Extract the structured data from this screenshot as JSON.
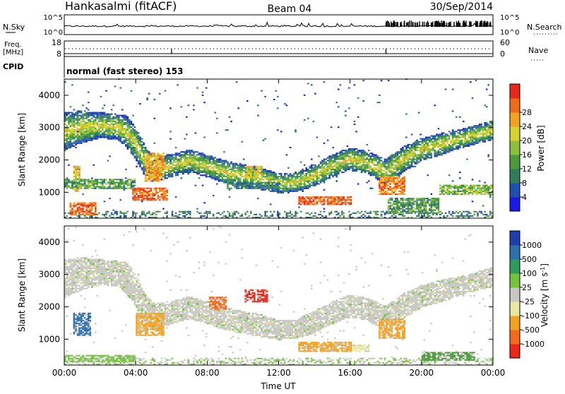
{
  "header": {
    "station": "Hankasalmi (fitACF)",
    "beam": "Beam 04",
    "date": "30/Sep/2014"
  },
  "side_labels": {
    "nsky": "N.Sky",
    "nsky_top": "10^5",
    "nsky_bottom": "10^0",
    "nsearch": "N.Search",
    "nsearch_top": "10^5",
    "nsearch_bottom": "10^0",
    "freq": "Freq.",
    "freq_unit": "[MHz]",
    "freq_top": "18",
    "freq_bottom": "8",
    "nave": "Nave",
    "nave_top": "60",
    "nave_bottom": "0",
    "cpid": "CPID",
    "cpid_text": "normal (fast stereo) 153"
  },
  "chart_data": [
    {
      "type": "heatmap",
      "name": "Power",
      "ylabel": "Slant Range [km]",
      "xlabel": "Time UT",
      "x_ticks": [
        "00:00",
        "04:00",
        "08:00",
        "12:00",
        "16:00",
        "20:00",
        "00:00"
      ],
      "y_ticks": [
        1000,
        2000,
        3000,
        4000
      ],
      "ylim": [
        200,
        4500
      ],
      "xlim_hours": [
        0,
        24
      ],
      "colorbar": {
        "label": "Power [dB]",
        "ticks": [
          "4",
          "8",
          "12",
          "16",
          "20",
          "24",
          "28"
        ],
        "colors": [
          "#1a1ae6",
          "#1f4fb0",
          "#2e7d5b",
          "#4c9a3c",
          "#8ec03a",
          "#d8d22e",
          "#f2a21e",
          "#f26a1a",
          "#e8281a"
        ]
      },
      "band": [
        [
          0.0,
          2850,
          600
        ],
        [
          1.0,
          3000,
          500
        ],
        [
          2.0,
          3050,
          400
        ],
        [
          3.0,
          3000,
          400
        ],
        [
          3.5,
          2850,
          500
        ],
        [
          4.0,
          2500,
          500
        ],
        [
          4.5,
          1950,
          450
        ],
        [
          5.0,
          1700,
          400
        ],
        [
          6.0,
          1800,
          350
        ],
        [
          7.0,
          1950,
          350
        ],
        [
          8.0,
          1800,
          350
        ],
        [
          9.0,
          1600,
          350
        ],
        [
          10.0,
          1500,
          350
        ],
        [
          11.0,
          1400,
          350
        ],
        [
          12.0,
          1250,
          300
        ],
        [
          13.0,
          1300,
          300
        ],
        [
          14.0,
          1500,
          350
        ],
        [
          15.0,
          1800,
          350
        ],
        [
          16.0,
          2000,
          350
        ],
        [
          17.0,
          1900,
          350
        ],
        [
          18.0,
          1600,
          400
        ],
        [
          19.0,
          2000,
          400
        ],
        [
          20.0,
          2300,
          350
        ],
        [
          21.0,
          2450,
          350
        ],
        [
          22.0,
          2600,
          300
        ],
        [
          23.0,
          2750,
          300
        ],
        [
          24.0,
          2900,
          300
        ]
      ],
      "patches": [
        [
          0.3,
          1.8,
          250,
          650,
          0.88
        ],
        [
          0.5,
          0.8,
          1000,
          1800,
          0.7
        ],
        [
          3.8,
          5.7,
          700,
          1100,
          0.9
        ],
        [
          4.5,
          5.5,
          1300,
          2200,
          0.75
        ],
        [
          10.0,
          11.0,
          1500,
          1800,
          0.6
        ],
        [
          13.0,
          16.0,
          600,
          850,
          0.92
        ],
        [
          17.5,
          19.0,
          900,
          1500,
          0.82
        ],
        [
          21.0,
          24.0,
          900,
          1200,
          0.45
        ],
        [
          18.0,
          21.0,
          300,
          800,
          0.35
        ],
        [
          0.0,
          4.0,
          1100,
          1400,
          0.35
        ],
        [
          9.0,
          12.0,
          1100,
          1300,
          0.25
        ]
      ]
    },
    {
      "type": "heatmap",
      "name": "Velocity",
      "ylabel": "Slant Range [km]",
      "xlabel": "Time UT",
      "x_ticks": [
        "00:00",
        "04:00",
        "08:00",
        "12:00",
        "16:00",
        "20:00",
        "00:00"
      ],
      "y_ticks": [
        1000,
        2000,
        3000,
        4000
      ],
      "ylim": [
        200,
        4500
      ],
      "xlim_hours": [
        0,
        24
      ],
      "colorbar": {
        "label": "Velocity [m s^-1]",
        "ticks": [
          "1000",
          "500",
          "100",
          "25",
          "-25",
          "-100",
          "-500",
          "-1000"
        ],
        "colors": [
          "#1f3fae",
          "#2e6fae",
          "#2e9a5b",
          "#72c43a",
          "#c8c8c0",
          "#e8e8a0",
          "#f2a21e",
          "#f26a1a",
          "#e8281a"
        ]
      },
      "band": [
        [
          0.0,
          2850,
          600
        ],
        [
          1.0,
          3000,
          500
        ],
        [
          2.0,
          3050,
          400
        ],
        [
          3.0,
          3000,
          400
        ],
        [
          3.5,
          2850,
          500
        ],
        [
          4.0,
          2500,
          500
        ],
        [
          4.5,
          1950,
          450
        ],
        [
          5.0,
          1700,
          400
        ],
        [
          6.0,
          1800,
          350
        ],
        [
          7.0,
          1950,
          350
        ],
        [
          8.0,
          1800,
          350
        ],
        [
          9.0,
          1600,
          350
        ],
        [
          10.0,
          1500,
          350
        ],
        [
          11.0,
          1400,
          350
        ],
        [
          12.0,
          1250,
          300
        ],
        [
          13.0,
          1300,
          300
        ],
        [
          14.0,
          1500,
          350
        ],
        [
          15.0,
          1800,
          350
        ],
        [
          16.0,
          2000,
          350
        ],
        [
          17.0,
          1900,
          350
        ],
        [
          18.0,
          1600,
          400
        ],
        [
          19.0,
          2000,
          400
        ],
        [
          20.0,
          2300,
          350
        ],
        [
          21.0,
          2450,
          350
        ],
        [
          22.0,
          2600,
          300
        ],
        [
          23.0,
          2750,
          300
        ],
        [
          24.0,
          2900,
          300
        ]
      ],
      "patches": [
        [
          13.0,
          16.0,
          600,
          900,
          "#f2a21e"
        ],
        [
          10.0,
          11.3,
          2100,
          2500,
          "#e8281a"
        ],
        [
          8.0,
          9.0,
          1900,
          2300,
          "#f26a1a"
        ],
        [
          0.5,
          1.5,
          1100,
          1800,
          "#2e6fae"
        ],
        [
          4.0,
          5.5,
          1100,
          1800,
          "#f2a21e"
        ],
        [
          17.5,
          19.0,
          1000,
          1600,
          "#f2a21e"
        ],
        [
          20.0,
          23.0,
          300,
          600,
          "#4c9a3c"
        ],
        [
          0.0,
          4.0,
          250,
          500,
          "#72c43a"
        ],
        [
          16.0,
          17.0,
          600,
          800,
          "#e8e8a0"
        ]
      ]
    }
  ]
}
